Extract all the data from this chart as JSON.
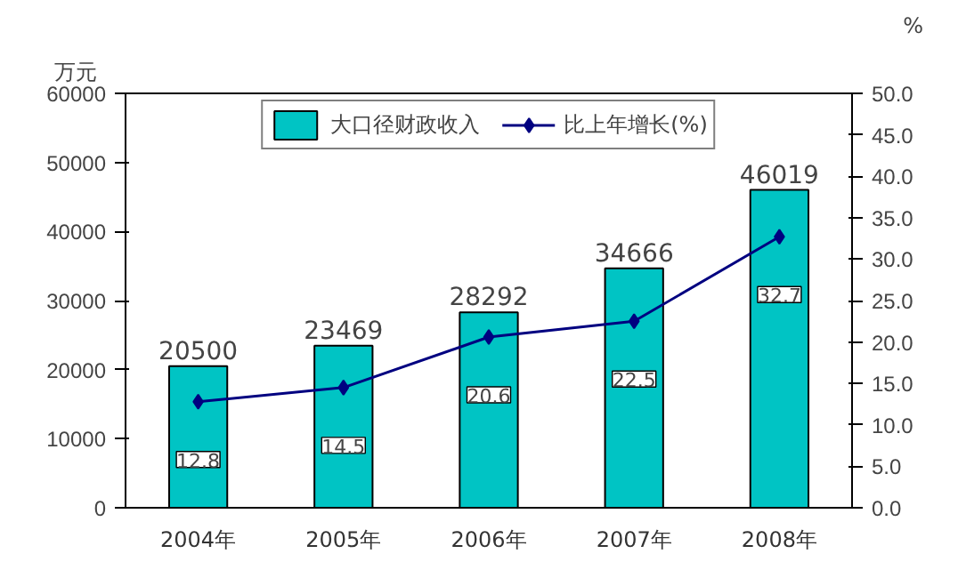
{
  "chart_data": {
    "type": "bar",
    "categories": [
      "2004年",
      "2005年",
      "2006年",
      "2007年",
      "2008年"
    ],
    "series": [
      {
        "name": "大口径财政收入",
        "color": "#00c4c4",
        "values": [
          20500,
          23469,
          28292,
          34666,
          46019
        ]
      },
      {
        "name": "比上年增长(%)",
        "type": "line",
        "axis": "y2",
        "color": "#000080",
        "marker": "diamond",
        "values": [
          12.8,
          14.5,
          20.6,
          22.5,
          32.7
        ]
      }
    ],
    "ylabel": "万元",
    "y2label": "%",
    "ylim": [
      0,
      60000
    ],
    "yticks": [
      0,
      10000,
      20000,
      30000,
      40000,
      50000,
      60000
    ],
    "y2lim": [
      0,
      50
    ],
    "y2ticks": [
      {
        "value": 0,
        "label": "0.0"
      },
      {
        "value": 5,
        "label": "5.0"
      },
      {
        "value": 10,
        "label": "10.0"
      },
      {
        "value": 15,
        "label": "15.0"
      },
      {
        "value": 20,
        "label": "20.0"
      },
      {
        "value": 25,
        "label": "25.0"
      },
      {
        "value": 30,
        "label": "30.0"
      },
      {
        "value": 35,
        "label": "35.0"
      },
      {
        "value": 40,
        "label": "40.0"
      },
      {
        "value": 45,
        "label": "45.0"
      },
      {
        "value": 50,
        "label": "50.0"
      }
    ],
    "legend": "top",
    "data_labels": true,
    "grid": false
  }
}
